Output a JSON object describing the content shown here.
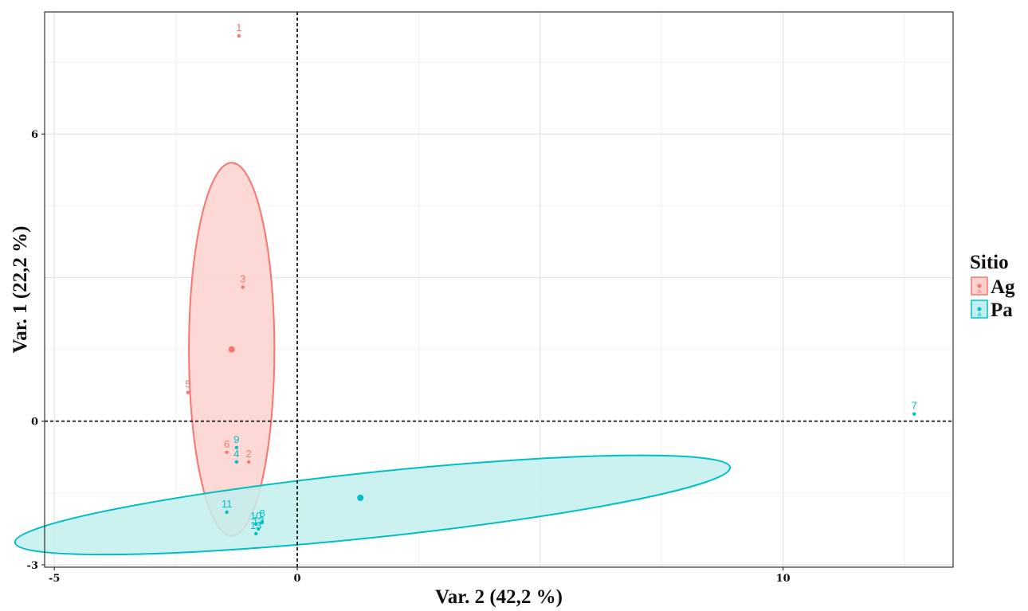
{
  "chart_data": {
    "type": "scatter",
    "title": "",
    "xlabel": "Var. 2 (42,2 %)",
    "ylabel": "Var. 1 (22,2 %)",
    "xlim": [
      -5.2,
      13.5
    ],
    "ylim": [
      -3.05,
      8.55
    ],
    "x_ticks": [
      -5,
      0,
      10
    ],
    "y_ticks": [
      -3,
      0,
      6
    ],
    "x_grid_major": [
      -5,
      0,
      5,
      10
    ],
    "x_grid_minor": [
      -2.5,
      2.5,
      7.5,
      12.5
    ],
    "y_grid_major": [
      -3,
      0,
      3,
      6
    ],
    "y_grid_minor": [
      -1.5,
      1.5,
      4.5,
      7.5
    ],
    "grid": true,
    "reference_lines": {
      "x": 0,
      "y": 0,
      "style": "dashed"
    },
    "legend": {
      "title": "Sitio",
      "position": "right",
      "entries": [
        {
          "label": "Ag",
          "color": "#F8766D",
          "fill": "#FBD2CE"
        },
        {
          "label": "Pa",
          "color": "#00BFC4",
          "fill": "#C3EEEF"
        }
      ]
    },
    "series": [
      {
        "name": "Ag",
        "color": "#F8766D",
        "centroid": {
          "x": -1.35,
          "y": 1.5
        },
        "ellipse": {
          "cx": -1.35,
          "cy": 1.5,
          "rx": 0.88,
          "ry": 3.9,
          "angle_deg": 0
        },
        "points": [
          {
            "id": "1",
            "x": -1.2,
            "y": 8.05
          },
          {
            "id": "3",
            "x": -1.12,
            "y": 2.8
          },
          {
            "id": "5",
            "x": -2.25,
            "y": 0.6
          },
          {
            "id": "6",
            "x": -1.45,
            "y": -0.65
          },
          {
            "id": "2",
            "x": -1.0,
            "y": -0.85
          }
        ]
      },
      {
        "name": "Pa",
        "color": "#00BFC4",
        "centroid": {
          "x": 1.3,
          "y": -1.6
        },
        "ellipse": {
          "cx": 1.55,
          "cy": -1.75,
          "rx": 7.4,
          "ry": 0.68,
          "angle_deg": -6
        },
        "points": [
          {
            "id": "7",
            "x": 12.7,
            "y": 0.15
          },
          {
            "id": "9",
            "x": -1.25,
            "y": -0.55
          },
          {
            "id": "4",
            "x": -1.25,
            "y": -0.85
          },
          {
            "id": "11",
            "x": -1.45,
            "y": -1.9
          },
          {
            "id": "10",
            "x": -0.85,
            "y": -2.15
          },
          {
            "id": "8",
            "x": -0.72,
            "y": -2.1
          },
          {
            "id": "12",
            "x": -0.8,
            "y": -2.25
          },
          {
            "id": "13",
            "x": -0.85,
            "y": -2.35
          }
        ]
      }
    ]
  }
}
